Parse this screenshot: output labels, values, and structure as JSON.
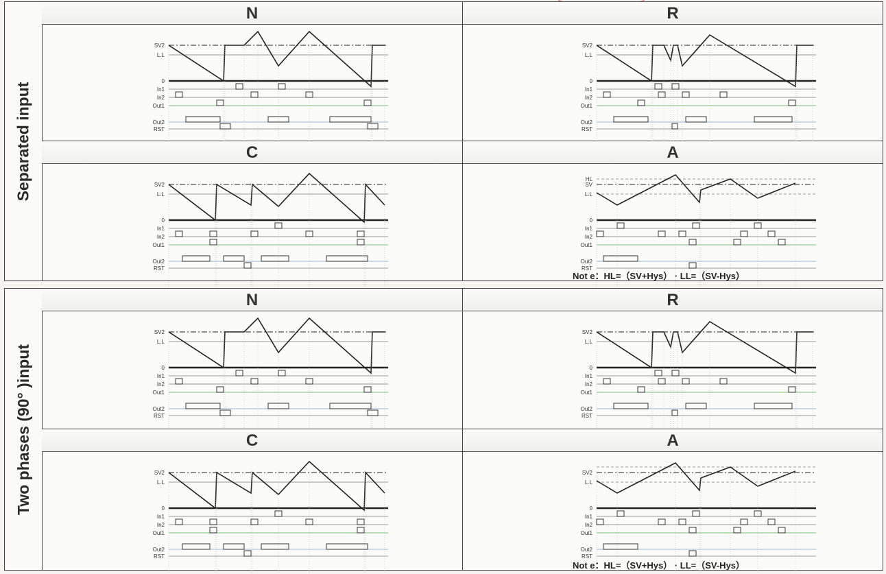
{
  "sections": [
    {
      "side_label": "Separated input",
      "cells": [
        {
          "title": "N",
          "signals": [
            "SV2",
            "L.L",
            "0",
            "In1",
            "In2",
            "Out1",
            "Out2",
            "RST"
          ],
          "note": ""
        },
        {
          "title": "R",
          "signals": [
            "SV2",
            "L.L",
            "0",
            "In1",
            "In2",
            "Out1",
            "Out2",
            "RST"
          ],
          "note": ""
        },
        {
          "title": "C",
          "signals": [
            "SV2",
            "L.L",
            "0",
            "In1",
            "In2",
            "Out1",
            "Out2",
            "RST"
          ],
          "note": ""
        },
        {
          "title": "A",
          "signals": [
            "HL",
            "SV",
            "L.L",
            "0",
            "In1",
            "In2",
            "Out1",
            "Out2",
            "RST"
          ],
          "note": "Not e：HL=（SV+Hys） · LL=（SV-Hys）"
        }
      ]
    },
    {
      "side_label": "Two phases (90° )input",
      "cells": [
        {
          "title": "N",
          "signals": [
            "SV2",
            "L.L",
            "0",
            "In1",
            "In2",
            "Out1",
            "Out2",
            "RST"
          ],
          "note": ""
        },
        {
          "title": "R",
          "signals": [
            "SV2",
            "L.L",
            "0",
            "In1",
            "In2",
            "Out1",
            "Out2",
            "RST"
          ],
          "note": ""
        },
        {
          "title": "C",
          "signals": [
            "SV2",
            "L.L",
            "0",
            "In1",
            "In2",
            "Out1",
            "Out2",
            "RST"
          ],
          "note": ""
        },
        {
          "title": "A",
          "signals": [
            "SV2",
            "L.L",
            "0",
            "In1",
            "In2",
            "Out1",
            "Out2",
            "RST"
          ],
          "note": "Not e：HL=（SV+Hys） · LL=（SV-Hys）"
        }
      ]
    }
  ],
  "colors": {
    "line": "#222222",
    "grid": "#9a9a9a",
    "accent_green": "#7cbf7c",
    "accent_blue": "#9ab7d6",
    "accent_red": "#c04040"
  }
}
